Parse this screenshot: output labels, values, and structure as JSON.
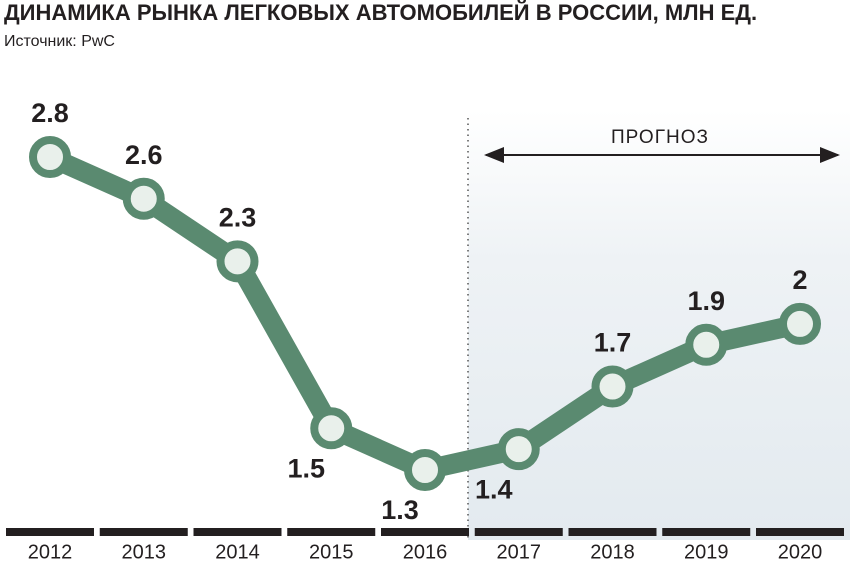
{
  "chart_data": {
    "type": "line",
    "title": "ДИНАМИКА РЫНКА ЛЕГКОВЫХ АВТОМОБИЛЕЙ В РОССИИ, МЛН ЕД.",
    "subtitle": "Источник: PwC",
    "annotation": "ПРОГНОЗ",
    "categories": [
      "2012",
      "2013",
      "2014",
      "2015",
      "2016",
      "2017",
      "2018",
      "2019",
      "2020"
    ],
    "values": [
      2.8,
      2.6,
      2.3,
      1.5,
      1.3,
      1.4,
      1.7,
      1.9,
      2
    ],
    "color": "#5a8a70"
  }
}
